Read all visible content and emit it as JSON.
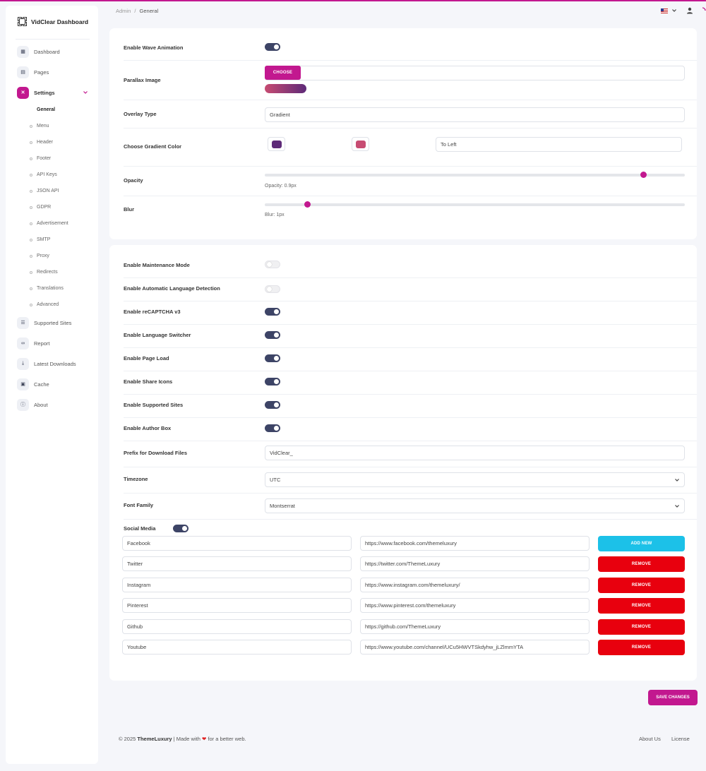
{
  "colors": {
    "accent": "#c2188f",
    "toggle_on": "#3d4466",
    "add": "#1cc1e8",
    "remove": "#e8000e"
  },
  "brand": {
    "name": "VidClear Dashboard",
    "icon": "grid-logo-icon"
  },
  "sidebar": {
    "items": [
      {
        "label": "Dashboard",
        "icon": "dashboard-icon"
      },
      {
        "label": "Pages",
        "icon": "pages-icon"
      },
      {
        "label": "Settings",
        "icon": "tools-icon"
      },
      {
        "label": "Supported Sites",
        "icon": "list-icon"
      },
      {
        "label": "Report",
        "icon": "link-icon"
      },
      {
        "label": "Latest Downloads",
        "icon": "download-icon"
      },
      {
        "label": "Cache",
        "icon": "cache-icon"
      },
      {
        "label": "About",
        "icon": "info-icon"
      }
    ],
    "settings_sub": [
      "General",
      "Menu",
      "Header",
      "Footer",
      "API Keys",
      "JSON API",
      "GDPR",
      "Advertisement",
      "SMTP",
      "Proxy",
      "Redirects",
      "Translations",
      "Advanced"
    ]
  },
  "header": {
    "breadcrumb_root": "Admin",
    "breadcrumb_sep": "/",
    "breadcrumb_current": "General"
  },
  "card1": {
    "wave_label": "Enable Wave Animation",
    "parallax_label": "Parallax Image",
    "choose_label": "CHOOSE",
    "overlay_label": "Overlay Type",
    "overlay_value": "Gradient",
    "gradient_label": "Choose Gradient Color",
    "gradient_color1": "#5e2a78",
    "gradient_color2": "#c74c72",
    "gradient_direction": "To Left",
    "opacity_label": "Opacity",
    "opacity_caption": "Opacity: 0.9px",
    "opacity_value": 0.9,
    "blur_label": "Blur",
    "blur_caption": "Blur: 1px",
    "blur_value": 1
  },
  "card2": {
    "toggles": [
      {
        "label": "Enable Maintenance Mode",
        "on": false
      },
      {
        "label": "Enable Automatic Language Detection",
        "on": false
      },
      {
        "label": "Enable reCAPTCHA v3",
        "on": true
      },
      {
        "label": "Enable Language Switcher",
        "on": true
      },
      {
        "label": "Enable Page Load",
        "on": true
      },
      {
        "label": "Enable Share Icons",
        "on": true
      },
      {
        "label": "Enable Supported Sites",
        "on": true
      },
      {
        "label": "Enable Author Box",
        "on": true
      }
    ],
    "prefix_label": "Prefix for Download Files",
    "prefix_value": "VidClear_",
    "timezone_label": "Timezone",
    "timezone_value": "UTC",
    "font_label": "Font Family",
    "font_value": "Montserrat",
    "social_label": "Social Media",
    "social": [
      {
        "name": "Facebook",
        "url": "https://www.facebook.com/themeluxury",
        "action": "ADD NEW"
      },
      {
        "name": "Twitter",
        "url": "https://twitter.com/ThemeLuxury",
        "action": "REMOVE"
      },
      {
        "name": "Instagram",
        "url": "https://www.instagram.com/themeluxury/",
        "action": "REMOVE"
      },
      {
        "name": "Pinterest",
        "url": "https://www.pinterest.com/themeluxury",
        "action": "REMOVE"
      },
      {
        "name": "Github",
        "url": "https://github.com/ThemeLuxury",
        "action": "REMOVE"
      },
      {
        "name": "Youtube",
        "url": "https://www.youtube.com/channel/UCu5HWVTSkdyhw_jLZlmmYTA",
        "action": "REMOVE"
      }
    ]
  },
  "save_label": "SAVE CHANGES",
  "footer": {
    "prefix": "© 2025",
    "brand": "ThemeLuxury",
    "made_with": "| Made with",
    "suffix": "for a better web.",
    "about": "About Us",
    "license": "License"
  }
}
